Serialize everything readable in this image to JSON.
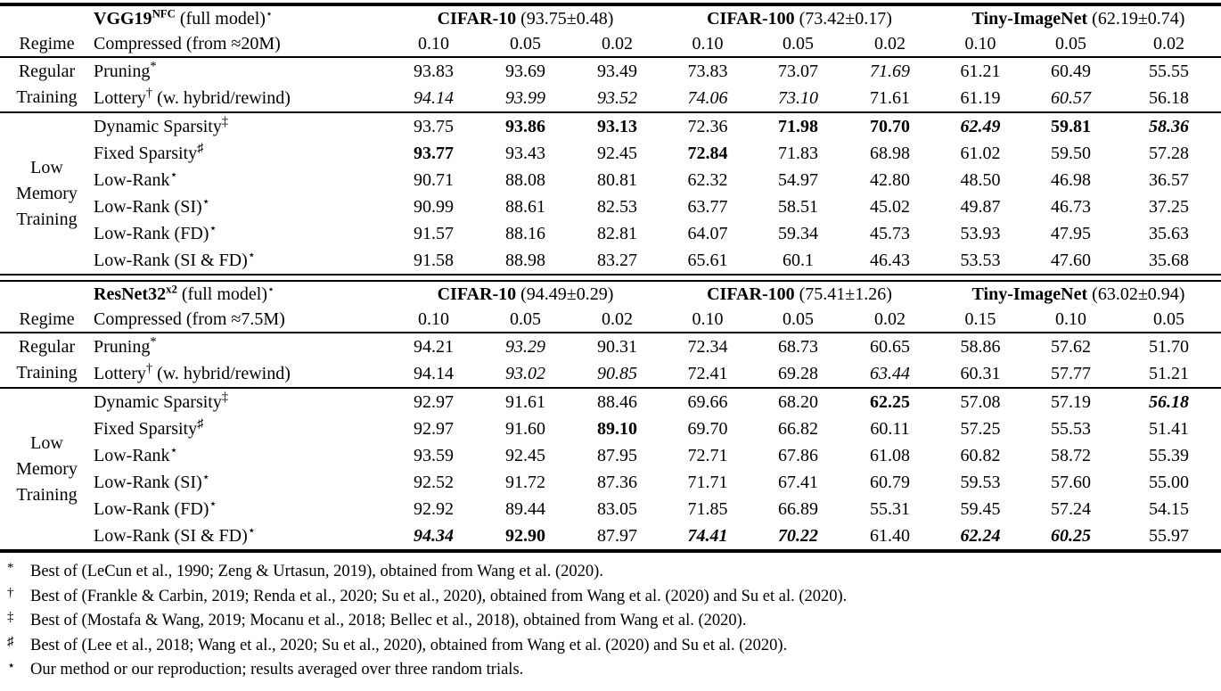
{
  "colors": {
    "text": "#000000",
    "background": "#ffffff",
    "rule": "#000000"
  },
  "tables": [
    {
      "data_name": "vgg-results-table",
      "regime_header": "Regime",
      "compressed_label": "Compressed (from ≈20M)",
      "model": {
        "name": "VGG19",
        "name_sup": "NFC",
        "suffix": "(full model)",
        "suffix_sup": "⋆"
      },
      "datasets": [
        {
          "name": "CIFAR-10",
          "stat": "(93.75±0.48)",
          "sparsities": [
            "0.10",
            "0.05",
            "0.02"
          ]
        },
        {
          "name": "CIFAR-100",
          "stat": "(73.42±0.17)",
          "sparsities": [
            "0.10",
            "0.05",
            "0.02"
          ]
        },
        {
          "name": "Tiny-ImageNet",
          "stat": "(62.19±0.74)",
          "sparsities": [
            "0.10",
            "0.05",
            "0.02"
          ]
        }
      ],
      "groups": [
        {
          "regime": "Regular\nTraining",
          "rows": [
            {
              "method": "Pruning",
              "sup": "*",
              "rest": "",
              "values": [
                {
                  "v": "93.83",
                  "s": ""
                },
                {
                  "v": "93.69",
                  "s": ""
                },
                {
                  "v": "93.49",
                  "s": ""
                },
                {
                  "v": "73.83",
                  "s": ""
                },
                {
                  "v": "73.07",
                  "s": ""
                },
                {
                  "v": "71.69",
                  "s": "i"
                },
                {
                  "v": "61.21",
                  "s": ""
                },
                {
                  "v": "60.49",
                  "s": ""
                },
                {
                  "v": "55.55",
                  "s": ""
                }
              ]
            },
            {
              "method": "Lottery",
              "sup": "†",
              "rest": " (w. hybrid/rewind)",
              "values": [
                {
                  "v": "94.14",
                  "s": "i"
                },
                {
                  "v": "93.99",
                  "s": "i"
                },
                {
                  "v": "93.52",
                  "s": "i"
                },
                {
                  "v": "74.06",
                  "s": "i"
                },
                {
                  "v": "73.10",
                  "s": "i"
                },
                {
                  "v": "71.61",
                  "s": ""
                },
                {
                  "v": "61.19",
                  "s": ""
                },
                {
                  "v": "60.57",
                  "s": "i"
                },
                {
                  "v": "56.18",
                  "s": ""
                }
              ]
            }
          ]
        },
        {
          "regime": "Low\nMemory\nTraining",
          "rows": [
            {
              "method": "Dynamic Sparsity",
              "sup": "‡",
              "rest": "",
              "values": [
                {
                  "v": "93.75",
                  "s": ""
                },
                {
                  "v": "93.86",
                  "s": "b"
                },
                {
                  "v": "93.13",
                  "s": "b"
                },
                {
                  "v": "72.36",
                  "s": ""
                },
                {
                  "v": "71.98",
                  "s": "b"
                },
                {
                  "v": "70.70",
                  "s": "b"
                },
                {
                  "v": "62.49",
                  "s": "bi"
                },
                {
                  "v": "59.81",
                  "s": "b"
                },
                {
                  "v": "58.36",
                  "s": "bi"
                }
              ]
            },
            {
              "method": "Fixed Sparsity",
              "sup": "♯",
              "rest": "",
              "values": [
                {
                  "v": "93.77",
                  "s": "b"
                },
                {
                  "v": "93.43",
                  "s": ""
                },
                {
                  "v": "92.45",
                  "s": ""
                },
                {
                  "v": "72.84",
                  "s": "b"
                },
                {
                  "v": "71.83",
                  "s": ""
                },
                {
                  "v": "68.98",
                  "s": ""
                },
                {
                  "v": "61.02",
                  "s": ""
                },
                {
                  "v": "59.50",
                  "s": ""
                },
                {
                  "v": "57.28",
                  "s": ""
                }
              ]
            },
            {
              "method": "Low-Rank",
              "sup": "⋆",
              "rest": "",
              "values": [
                {
                  "v": "90.71",
                  "s": ""
                },
                {
                  "v": "88.08",
                  "s": ""
                },
                {
                  "v": "80.81",
                  "s": ""
                },
                {
                  "v": "62.32",
                  "s": ""
                },
                {
                  "v": "54.97",
                  "s": ""
                },
                {
                  "v": "42.80",
                  "s": ""
                },
                {
                  "v": "48.50",
                  "s": ""
                },
                {
                  "v": "46.98",
                  "s": ""
                },
                {
                  "v": "36.57",
                  "s": ""
                }
              ]
            },
            {
              "method": "Low-Rank (SI)",
              "sup": "⋆",
              "rest": "",
              "values": [
                {
                  "v": "90.99",
                  "s": ""
                },
                {
                  "v": "88.61",
                  "s": ""
                },
                {
                  "v": "82.53",
                  "s": ""
                },
                {
                  "v": "63.77",
                  "s": ""
                },
                {
                  "v": "58.51",
                  "s": ""
                },
                {
                  "v": "45.02",
                  "s": ""
                },
                {
                  "v": "49.87",
                  "s": ""
                },
                {
                  "v": "46.73",
                  "s": ""
                },
                {
                  "v": "37.25",
                  "s": ""
                }
              ]
            },
            {
              "method": "Low-Rank (FD)",
              "sup": "⋆",
              "rest": "",
              "values": [
                {
                  "v": "91.57",
                  "s": ""
                },
                {
                  "v": "88.16",
                  "s": ""
                },
                {
                  "v": "82.81",
                  "s": ""
                },
                {
                  "v": "64.07",
                  "s": ""
                },
                {
                  "v": "59.34",
                  "s": ""
                },
                {
                  "v": "45.73",
                  "s": ""
                },
                {
                  "v": "53.93",
                  "s": ""
                },
                {
                  "v": "47.95",
                  "s": ""
                },
                {
                  "v": "35.63",
                  "s": ""
                }
              ]
            },
            {
              "method": "Low-Rank (SI & FD)",
              "sup": "⋆",
              "rest": "",
              "values": [
                {
                  "v": "91.58",
                  "s": ""
                },
                {
                  "v": "88.98",
                  "s": ""
                },
                {
                  "v": "83.27",
                  "s": ""
                },
                {
                  "v": "65.61",
                  "s": ""
                },
                {
                  "v": "60.1",
                  "s": ""
                },
                {
                  "v": "46.43",
                  "s": ""
                },
                {
                  "v": "53.53",
                  "s": ""
                },
                {
                  "v": "47.60",
                  "s": ""
                },
                {
                  "v": "35.68",
                  "s": ""
                }
              ]
            }
          ]
        }
      ]
    },
    {
      "data_name": "resnet-results-table",
      "regime_header": "Regime",
      "compressed_label": "Compressed (from ≈7.5M)",
      "model": {
        "name": "ResNet32",
        "name_sup": "x2",
        "suffix": "(full model)",
        "suffix_sup": "⋆"
      },
      "datasets": [
        {
          "name": "CIFAR-10",
          "stat": "(94.49±0.29)",
          "sparsities": [
            "0.10",
            "0.05",
            "0.02"
          ]
        },
        {
          "name": "CIFAR-100",
          "stat": "(75.41±1.26)",
          "sparsities": [
            "0.10",
            "0.05",
            "0.02"
          ]
        },
        {
          "name": "Tiny-ImageNet",
          "stat": "(63.02±0.94)",
          "sparsities": [
            "0.15",
            "0.10",
            "0.05"
          ]
        }
      ],
      "groups": [
        {
          "regime": "Regular\nTraining",
          "rows": [
            {
              "method": "Pruning",
              "sup": "*",
              "rest": "",
              "values": [
                {
                  "v": "94.21",
                  "s": ""
                },
                {
                  "v": "93.29",
                  "s": "i"
                },
                {
                  "v": "90.31",
                  "s": ""
                },
                {
                  "v": "72.34",
                  "s": ""
                },
                {
                  "v": "68.73",
                  "s": ""
                },
                {
                  "v": "60.65",
                  "s": ""
                },
                {
                  "v": "58.86",
                  "s": ""
                },
                {
                  "v": "57.62",
                  "s": ""
                },
                {
                  "v": "51.70",
                  "s": ""
                }
              ]
            },
            {
              "method": "Lottery",
              "sup": "†",
              "rest": " (w. hybrid/rewind)",
              "values": [
                {
                  "v": "94.14",
                  "s": ""
                },
                {
                  "v": "93.02",
                  "s": "i"
                },
                {
                  "v": "90.85",
                  "s": "i"
                },
                {
                  "v": "72.41",
                  "s": ""
                },
                {
                  "v": "69.28",
                  "s": ""
                },
                {
                  "v": "63.44",
                  "s": "i"
                },
                {
                  "v": "60.31",
                  "s": ""
                },
                {
                  "v": "57.77",
                  "s": ""
                },
                {
                  "v": "51.21",
                  "s": ""
                }
              ]
            }
          ]
        },
        {
          "regime": "Low\nMemory\nTraining",
          "rows": [
            {
              "method": "Dynamic Sparsity",
              "sup": "‡",
              "rest": "",
              "values": [
                {
                  "v": "92.97",
                  "s": ""
                },
                {
                  "v": "91.61",
                  "s": ""
                },
                {
                  "v": "88.46",
                  "s": ""
                },
                {
                  "v": "69.66",
                  "s": ""
                },
                {
                  "v": "68.20",
                  "s": ""
                },
                {
                  "v": "62.25",
                  "s": "b"
                },
                {
                  "v": "57.08",
                  "s": ""
                },
                {
                  "v": "57.19",
                  "s": ""
                },
                {
                  "v": "56.18",
                  "s": "bi"
                }
              ]
            },
            {
              "method": "Fixed Sparsity",
              "sup": "♯",
              "rest": "",
              "values": [
                {
                  "v": "92.97",
                  "s": ""
                },
                {
                  "v": "91.60",
                  "s": ""
                },
                {
                  "v": "89.10",
                  "s": "b"
                },
                {
                  "v": "69.70",
                  "s": ""
                },
                {
                  "v": "66.82",
                  "s": ""
                },
                {
                  "v": "60.11",
                  "s": ""
                },
                {
                  "v": "57.25",
                  "s": ""
                },
                {
                  "v": "55.53",
                  "s": ""
                },
                {
                  "v": "51.41",
                  "s": ""
                }
              ]
            },
            {
              "method": "Low-Rank",
              "sup": "⋆",
              "rest": "",
              "values": [
                {
                  "v": "93.59",
                  "s": ""
                },
                {
                  "v": "92.45",
                  "s": ""
                },
                {
                  "v": "87.95",
                  "s": ""
                },
                {
                  "v": "72.71",
                  "s": ""
                },
                {
                  "v": "67.86",
                  "s": ""
                },
                {
                  "v": "61.08",
                  "s": ""
                },
                {
                  "v": "60.82",
                  "s": ""
                },
                {
                  "v": "58.72",
                  "s": ""
                },
                {
                  "v": "55.39",
                  "s": ""
                }
              ]
            },
            {
              "method": "Low-Rank (SI)",
              "sup": "⋆",
              "rest": "",
              "values": [
                {
                  "v": "92.52",
                  "s": ""
                },
                {
                  "v": "91.72",
                  "s": ""
                },
                {
                  "v": "87.36",
                  "s": ""
                },
                {
                  "v": "71.71",
                  "s": ""
                },
                {
                  "v": "67.41",
                  "s": ""
                },
                {
                  "v": "60.79",
                  "s": ""
                },
                {
                  "v": "59.53",
                  "s": ""
                },
                {
                  "v": "57.60",
                  "s": ""
                },
                {
                  "v": "55.00",
                  "s": ""
                }
              ]
            },
            {
              "method": "Low-Rank (FD)",
              "sup": "⋆",
              "rest": "",
              "values": [
                {
                  "v": "92.92",
                  "s": ""
                },
                {
                  "v": "89.44",
                  "s": ""
                },
                {
                  "v": "83.05",
                  "s": ""
                },
                {
                  "v": "71.85",
                  "s": ""
                },
                {
                  "v": "66.89",
                  "s": ""
                },
                {
                  "v": "55.31",
                  "s": ""
                },
                {
                  "v": "59.45",
                  "s": ""
                },
                {
                  "v": "57.24",
                  "s": ""
                },
                {
                  "v": "54.15",
                  "s": ""
                }
              ]
            },
            {
              "method": "Low-Rank (SI & FD)",
              "sup": "⋆",
              "rest": "",
              "values": [
                {
                  "v": "94.34",
                  "s": "bi"
                },
                {
                  "v": "92.90",
                  "s": "b"
                },
                {
                  "v": "87.97",
                  "s": ""
                },
                {
                  "v": "74.41",
                  "s": "bi"
                },
                {
                  "v": "70.22",
                  "s": "bi"
                },
                {
                  "v": "61.40",
                  "s": ""
                },
                {
                  "v": "62.24",
                  "s": "bi"
                },
                {
                  "v": "60.25",
                  "s": "bi"
                },
                {
                  "v": "55.97",
                  "s": ""
                }
              ]
            }
          ]
        }
      ]
    }
  ],
  "footnotes": [
    {
      "marker": "*",
      "text": "Best of (LeCun et al., 1990; Zeng & Urtasun, 2019), obtained from Wang et al. (2020)."
    },
    {
      "marker": "†",
      "text": "Best of (Frankle & Carbin, 2019; Renda et al., 2020; Su et al., 2020), obtained from Wang et al. (2020) and Su et al. (2020)."
    },
    {
      "marker": "‡",
      "text": "Best of (Mostafa & Wang, 2019; Mocanu et al., 2018; Bellec et al., 2018), obtained from Wang et al. (2020)."
    },
    {
      "marker": "♯",
      "text": "Best of (Lee et al., 2018; Wang et al., 2020; Su et al., 2020), obtained from Wang et al. (2020) and Su et al. (2020)."
    },
    {
      "marker": "⋆",
      "text": "Our method or our reproduction; results averaged over three random trials."
    }
  ]
}
